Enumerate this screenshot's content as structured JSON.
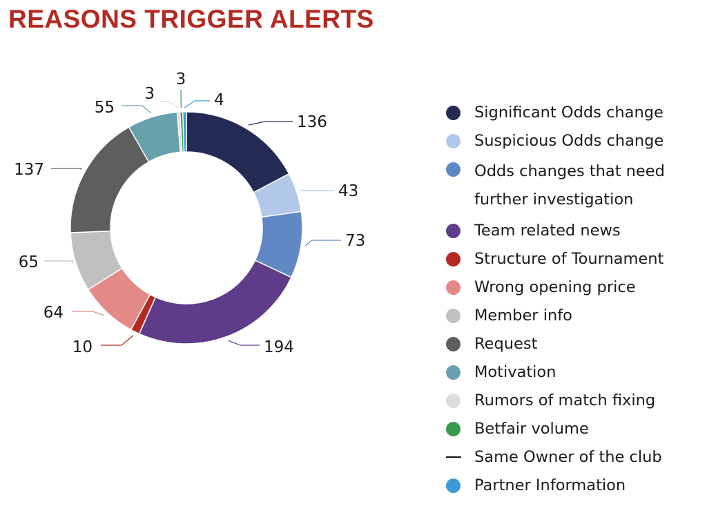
{
  "chart_data": {
    "type": "pie",
    "title": "REASONS TRIGGER ALERTS",
    "donut": true,
    "legend_position": "right",
    "slices": [
      {
        "label": "Significant Odds change",
        "value": 136,
        "color": "#232b55"
      },
      {
        "label": "Suspicious Odds change",
        "value": 43,
        "color": "#b2c8ea"
      },
      {
        "label": "Odds changes that need further investigation",
        "value": 73,
        "color": "#6088c4"
      },
      {
        "label": "Team related news",
        "value": 194,
        "color": "#5f3c8a"
      },
      {
        "label": "Structure of Tournament",
        "value": 10,
        "color": "#b42a22"
      },
      {
        "label": "Wrong opening price",
        "value": 64,
        "color": "#e48a86"
      },
      {
        "label": "Member info",
        "value": 65,
        "color": "#c0c0c0"
      },
      {
        "label": "Request",
        "value": 137,
        "color": "#5e5e5e"
      },
      {
        "label": "Motivation",
        "value": 55,
        "color": "#68a1ac"
      },
      {
        "label": "Rumors of match fixing",
        "value": 3,
        "color": "#dcdcdc"
      },
      {
        "label": "Betfair volume",
        "value": 3,
        "color": "#3a9a4e"
      },
      {
        "label": "Same Owner of the club",
        "value": 0,
        "color": "#111111"
      },
      {
        "label": "Partner Information",
        "value": 4,
        "color": "#3d9ad9"
      }
    ]
  }
}
